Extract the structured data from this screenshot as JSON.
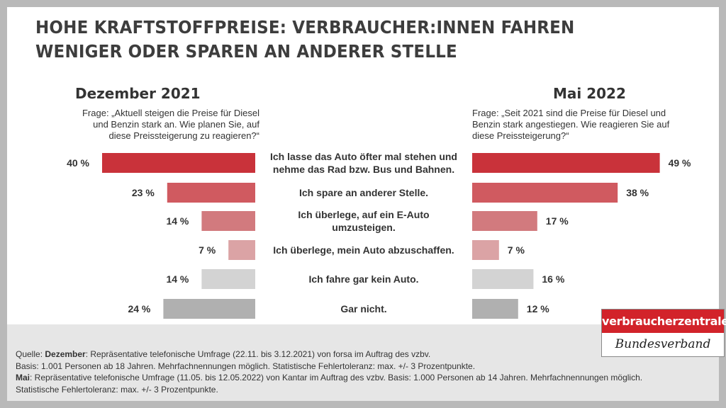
{
  "title_line1": "HOHE KRAFTSTOFFPREISE: VERBRAUCHER:INNEN FAHREN",
  "title_line2": "WENIGER ODER SPAREN AN ANDERER STELLE",
  "left": {
    "period": "Dezember 2021",
    "question": "Frage: „Aktuell steigen die Preise für Diesel und Benzin stark an. Wie planen Sie, auf diese Preissteigerung zu reagieren?“"
  },
  "right": {
    "period": "Mai 2022",
    "question": "Frage: „Seit 2021 sind die Preise für Diesel und Benzin stark angestiegen. Wie reagieren Sie auf diese Preissteigerung?“"
  },
  "chart_data": {
    "type": "bar",
    "categories": [
      [
        "Ich lasse das Auto öfter mal stehen und",
        "nehme das Rad bzw. Bus und Bahnen."
      ],
      [
        "Ich spare an anderer Stelle."
      ],
      [
        "Ich überlege, auf ein E-Auto",
        "umzusteigen."
      ],
      [
        "Ich überlege, mein Auto abzuschaffen."
      ],
      [
        "Ich fahre gar kein Auto."
      ],
      [
        "Gar nicht."
      ]
    ],
    "series": [
      {
        "name": "Dezember 2021",
        "values": [
          40,
          23,
          14,
          7,
          14,
          24
        ]
      },
      {
        "name": "Mai 2022",
        "values": [
          49,
          38,
          17,
          7,
          16,
          12
        ]
      }
    ],
    "value_labels_left": [
      "40 %",
      "23 %",
      "14 %",
      "7 %",
      "14 %",
      "24 %"
    ],
    "value_labels_right": [
      "49 %",
      "38 %",
      "17 %",
      "7 %",
      "16 %",
      "12 %"
    ],
    "bar_colors": [
      "#c9323a",
      "#d05a60",
      "#d27a7e",
      "#dba3a5",
      "#d3d3d3",
      "#b0b0b0"
    ]
  },
  "footer": {
    "line1_prefix": "Quelle: ",
    "line1_bold": "Dezember",
    "line1_rest": ": Repräsentative telefonische Umfrage (22.11. bis 3.12.2021) von forsa im Auftrag des vzbv.",
    "line2": "Basis: 1.001 Personen ab 18 Jahren. Mehrfachnennungen möglich. Statistische Fehlertoleranz: max. +/- 3 Prozentpunkte.",
    "line3_bold": "Mai",
    "line3_rest": ": Repräsentative telefonische Umfrage (11.05. bis 12.05.2022) von Kantar im Auftrag des vzbv. Basis: 1.000 Personen ab 14 Jahren. Mehrfachnennungen möglich. Statistische Fehlertoleranz: max. +/- 3 Prozentpunkte."
  },
  "logo": {
    "top": "verbraucherzentrale",
    "bottom": "Bundesverband"
  }
}
